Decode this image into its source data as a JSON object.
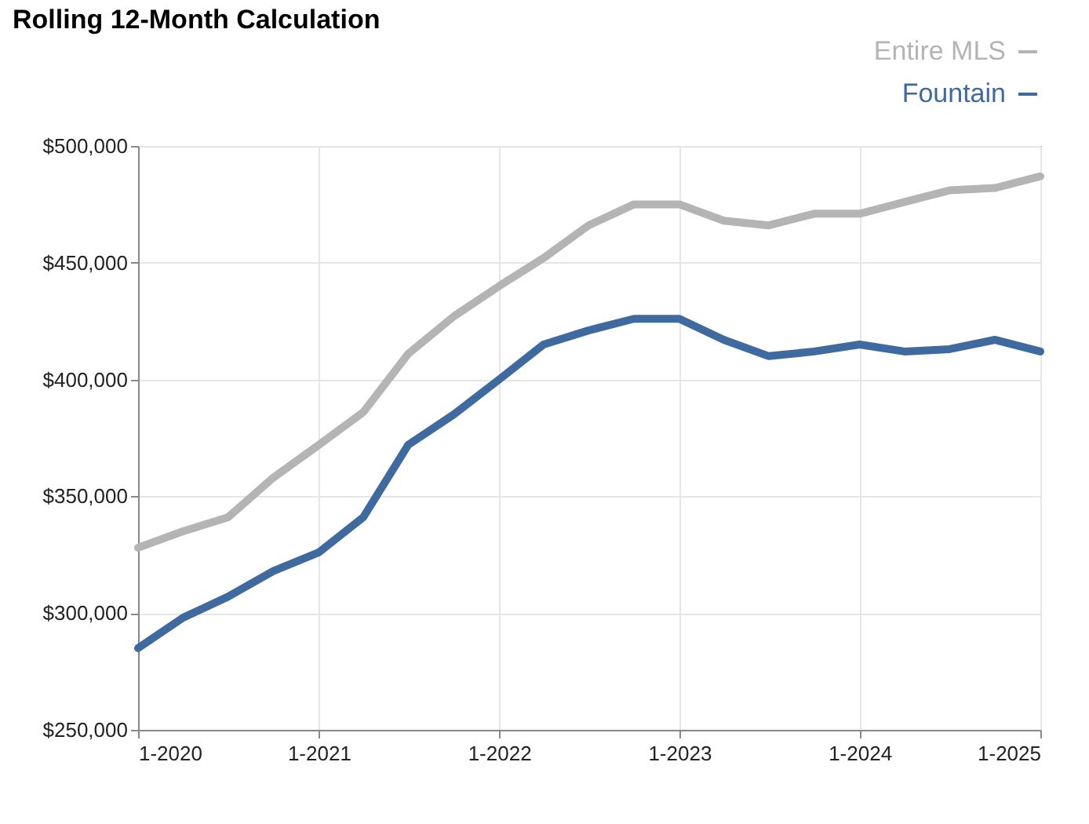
{
  "chart_data": {
    "type": "line",
    "title": "Rolling 12-Month Calculation",
    "x": [
      "2020-01",
      "2020-04",
      "2020-07",
      "2020-10",
      "2021-01",
      "2021-04",
      "2021-07",
      "2021-10",
      "2022-01",
      "2022-04",
      "2022-07",
      "2022-10",
      "2023-01",
      "2023-04",
      "2023-07",
      "2023-10",
      "2024-01",
      "2024-04",
      "2024-07",
      "2024-10",
      "2025-01"
    ],
    "series": [
      {
        "name": "Entire MLS",
        "color": "#b4b4b4",
        "values": [
          328000,
          335000,
          341000,
          358000,
          372000,
          386000,
          411000,
          427000,
          440000,
          452000,
          466000,
          475000,
          475000,
          468000,
          466000,
          471000,
          471000,
          476000,
          481000,
          482000,
          487000
        ]
      },
      {
        "name": "Fountain",
        "color": "#3f6aa0",
        "values": [
          285000,
          298000,
          307000,
          318000,
          326000,
          341000,
          372000,
          385000,
          400000,
          415000,
          421000,
          426000,
          426000,
          417000,
          410000,
          412000,
          415000,
          412000,
          413000,
          417000,
          412000
        ]
      }
    ],
    "xlim": [
      "2020-01",
      "2025-01"
    ],
    "xticks": [
      {
        "value": "2020-01",
        "label": "1-2020"
      },
      {
        "value": "2021-01",
        "label": "1-2021"
      },
      {
        "value": "2022-01",
        "label": "1-2022"
      },
      {
        "value": "2023-01",
        "label": "1-2023"
      },
      {
        "value": "2024-01",
        "label": "1-2024"
      },
      {
        "value": "2025-01",
        "label": "1-2025"
      }
    ],
    "ylim": [
      250000,
      500000
    ],
    "yticks": [
      {
        "value": 250000,
        "label": "$250,000"
      },
      {
        "value": 300000,
        "label": "$300,000"
      },
      {
        "value": 350000,
        "label": "$350,000"
      },
      {
        "value": 400000,
        "label": "$400,000"
      },
      {
        "value": 450000,
        "label": "$450,000"
      },
      {
        "value": 500000,
        "label": "$500,000"
      }
    ],
    "grid": true,
    "legend": "top right",
    "line_style": "solid",
    "marker": "none"
  }
}
